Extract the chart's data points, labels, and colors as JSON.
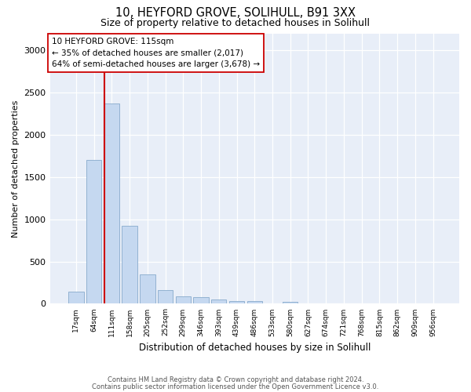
{
  "title1": "10, HEYFORD GROVE, SOLIHULL, B91 3XX",
  "title2": "Size of property relative to detached houses in Solihull",
  "xlabel": "Distribution of detached houses by size in Solihull",
  "ylabel": "Number of detached properties",
  "categories": [
    "17sqm",
    "64sqm",
    "111sqm",
    "158sqm",
    "205sqm",
    "252sqm",
    "299sqm",
    "346sqm",
    "393sqm",
    "439sqm",
    "486sqm",
    "533sqm",
    "580sqm",
    "627sqm",
    "674sqm",
    "721sqm",
    "768sqm",
    "815sqm",
    "862sqm",
    "909sqm",
    "956sqm"
  ],
  "values": [
    140,
    1700,
    2370,
    920,
    345,
    160,
    90,
    75,
    50,
    35,
    28,
    5,
    22,
    5,
    0,
    0,
    0,
    0,
    0,
    0,
    0
  ],
  "bar_color": "#c5d8f0",
  "bar_edge_color": "#88aacc",
  "vline_index": 2,
  "vline_color": "#cc0000",
  "annotation_line1": "10 HEYFORD GROVE: 115sqm",
  "annotation_line2": "← 35% of detached houses are smaller (2,017)",
  "annotation_line3": "64% of semi-detached houses are larger (3,678) →",
  "annotation_box_color": "#ffffff",
  "annotation_box_edge": "#cc0000",
  "ylim_max": 3200,
  "yticks": [
    0,
    500,
    1000,
    1500,
    2000,
    2500,
    3000
  ],
  "plot_bg": "#e8eef8",
  "footer1": "Contains HM Land Registry data © Crown copyright and database right 2024.",
  "footer2": "Contains public sector information licensed under the Open Government Licence v3.0."
}
